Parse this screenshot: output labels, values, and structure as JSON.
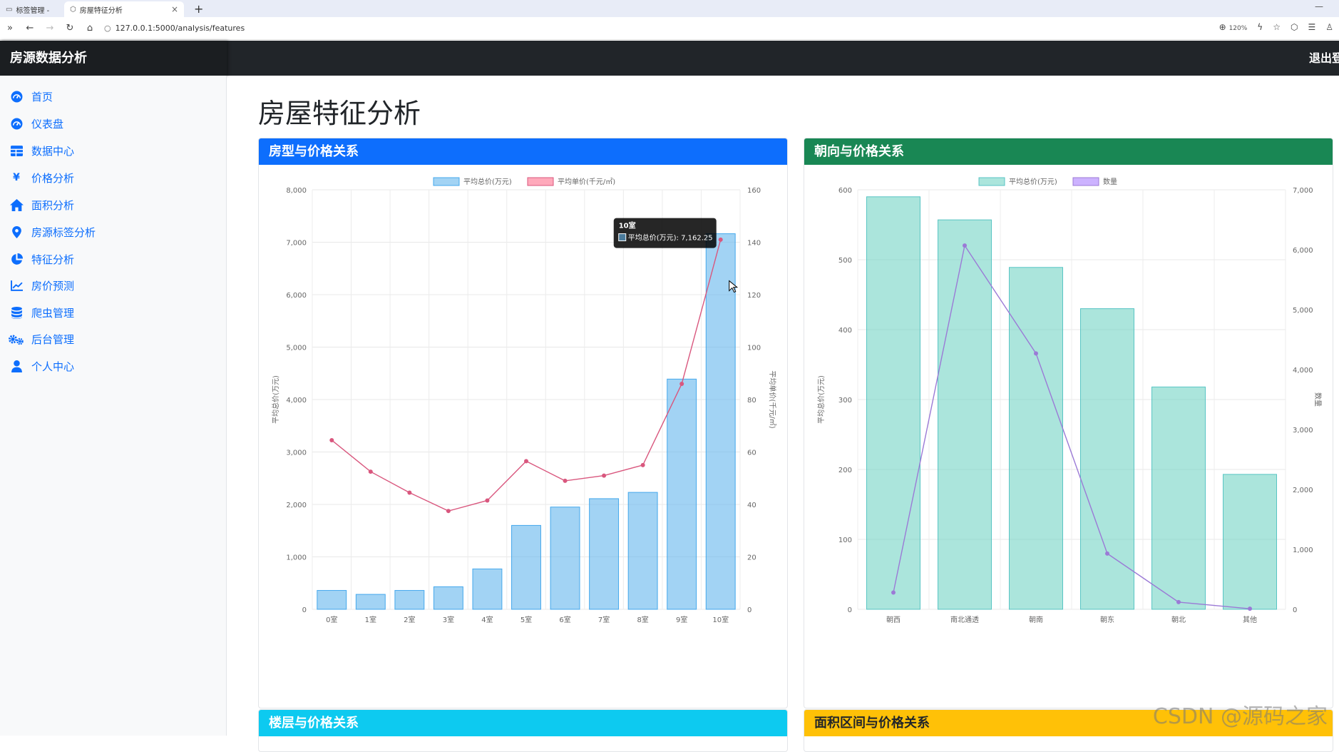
{
  "browser": {
    "tabs": [
      {
        "label": "标签管理 -",
        "active": false
      },
      {
        "label": "房屋特征分析",
        "active": true
      }
    ],
    "new_tab": "+",
    "url": "127.0.0.1:5000/analysis/features",
    "zoom": "120%"
  },
  "header": {
    "brand": "房源数据分析",
    "logout": "退出登录"
  },
  "sidebar": {
    "items": [
      {
        "label": "首页",
        "icon": "gauge-icon"
      },
      {
        "label": "仪表盘",
        "icon": "gauge-icon"
      },
      {
        "label": "数据中心",
        "icon": "table-icon"
      },
      {
        "label": "价格分析",
        "icon": "yen-icon"
      },
      {
        "label": "面积分析",
        "icon": "home-icon"
      },
      {
        "label": "房源标签分析",
        "icon": "map-pin-icon"
      },
      {
        "label": "特征分析",
        "icon": "pie-chart-icon"
      },
      {
        "label": "房价预测",
        "icon": "line-chart-icon"
      },
      {
        "label": "爬虫管理",
        "icon": "database-icon"
      },
      {
        "label": "后台管理",
        "icon": "gears-icon"
      },
      {
        "label": "个人中心",
        "icon": "user-icon"
      }
    ]
  },
  "main": {
    "title": "房屋特征分析",
    "cards": {
      "room": {
        "title": "房型与价格关系",
        "color": "#0d6efd"
      },
      "orientation": {
        "title": "朝向与价格关系",
        "color": "#198754"
      },
      "floor": {
        "title": "楼层与价格关系",
        "color": "#0dcaf0"
      },
      "area": {
        "title": "面积区间与价格关系",
        "color": "#ffc107"
      }
    }
  },
  "watermark": "CSDN @源码之家",
  "chart_data": [
    {
      "type": "bar",
      "title": "房型与价格关系",
      "categories": [
        "0室",
        "1室",
        "2室",
        "3室",
        "4室",
        "5室",
        "6室",
        "7室",
        "8室",
        "9室",
        "10室"
      ],
      "series": [
        {
          "name": "平均总价(万元)",
          "type": "bar",
          "axis": "left",
          "values": [
            360,
            285,
            360,
            430,
            770,
            1600,
            1950,
            2110,
            2230,
            4390,
            7162.25
          ]
        },
        {
          "name": "平均单价(千元/㎡)",
          "type": "line",
          "axis": "right",
          "values": [
            64.5,
            52.5,
            44.5,
            37.5,
            41.5,
            56.5,
            49,
            51,
            55,
            86,
            141
          ]
        }
      ],
      "ylabel": "平均总价(万元)",
      "ylim": [
        0,
        8000
      ],
      "y_ticks": [
        "0",
        "1,000",
        "2,000",
        "3,000",
        "4,000",
        "5,000",
        "6,000",
        "7,000",
        "8,000"
      ],
      "y2label": "平均单价(千元/㎡)",
      "y2lim": [
        0,
        160
      ],
      "y2_ticks": [
        "0",
        "20",
        "40",
        "60",
        "80",
        "100",
        "120",
        "140",
        "160"
      ],
      "legend": "top",
      "tooltip": {
        "title": "10室",
        "label": "平均总价(万元): 7,162.25"
      }
    },
    {
      "type": "bar",
      "title": "朝向与价格关系",
      "categories": [
        "朝西",
        "南北通透",
        "朝南",
        "朝东",
        "朝北",
        "其他"
      ],
      "series": [
        {
          "name": "平均总价(万元)",
          "type": "bar",
          "axis": "left",
          "values": [
            590,
            557,
            489,
            430,
            318,
            193
          ]
        },
        {
          "name": "数量",
          "type": "line",
          "axis": "right",
          "values": [
            280,
            6070,
            4270,
            930,
            120,
            10
          ]
        }
      ],
      "ylabel": "平均总价(万元)",
      "ylim": [
        0,
        600
      ],
      "y_ticks": [
        "0",
        "100",
        "200",
        "300",
        "400",
        "500",
        "600"
      ],
      "y2label": "数量",
      "y2lim": [
        0,
        7000
      ],
      "y2_ticks": [
        "0",
        "1,000",
        "2,000",
        "3,000",
        "4,000",
        "5,000",
        "6,000",
        "7,000"
      ],
      "legend": "top"
    }
  ]
}
